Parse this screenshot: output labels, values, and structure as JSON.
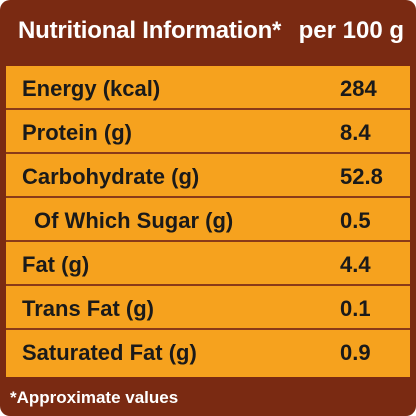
{
  "header": {
    "title": "Nutritional Information*",
    "unit": "per 100 g"
  },
  "rows": [
    {
      "label": "Energy (kcal)",
      "value": "284"
    },
    {
      "label": "Protein (g)",
      "value": "8.4"
    },
    {
      "label": "Carbohydrate (g)",
      "value": "52.8"
    },
    {
      "label": "Of Which Sugar (g)",
      "value": "0.5"
    },
    {
      "label": "Fat (g)",
      "value": "4.4"
    },
    {
      "label": "Trans Fat (g)",
      "value": "0.1"
    },
    {
      "label": "Saturated Fat (g)",
      "value": "0.9"
    }
  ],
  "footer": {
    "note": "*Approximate values"
  },
  "colors": {
    "panel": "#7a2a12",
    "table": "#f6a21e",
    "divider": "#8a3a18",
    "text": "#1a1a1a",
    "header_text": "#ffffff"
  }
}
